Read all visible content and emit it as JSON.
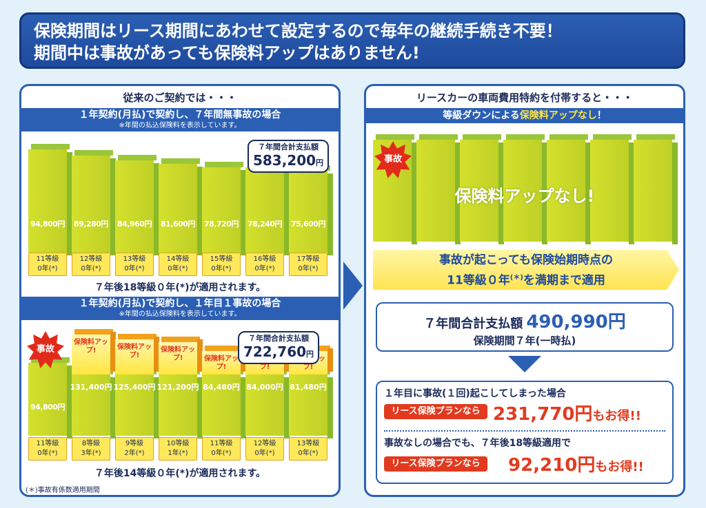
{
  "header": {
    "line1": "保険期間はリース期間にあわせて設定するので毎年の継続手続き不要！",
    "line2": "期間中は事故があっても保険料アップはありません!"
  },
  "left": {
    "title": "従来のご契約では・・・",
    "note": "※年間の払込保険料を表示しています。",
    "footnote": "(＊)事故有係数適用期間"
  },
  "right": {
    "title": "リースカーの車両費用特約を付帯すると・・・",
    "band": "等級ダウンによる保険料アップなし！",
    "band_plain": "等級ダウンによる",
    "band_highlight": "保険料アップなし",
    "band_tail": "！",
    "accident": "事故",
    "no_increase": "保険料アップなし!",
    "arrow_text_1": "事故が起こっても保険始期時点の",
    "arrow_text_2": "11等級０年",
    "arrow_text_2b": "(＊)",
    "arrow_text_2c": "を満期まで適用",
    "total_label": "７年間合計支払額",
    "total_amount": "490,990円",
    "period": "保険期間７年(一時払)",
    "case1": "１年目に事故(１回)起こしてしまった場合",
    "plan_label": "リース保険プランなら",
    "case1_amount": "231,770円",
    "case1_tail": "もお得!!",
    "case2": "事故なしの場合でも、７年後18等級適用で",
    "case2_amount": "92,210円",
    "case2_tail": "もお得!!"
  },
  "chart_data": [
    {
      "type": "bar",
      "title": "１年契約(月払)で契約し、７年間無事故の場合",
      "categories": [
        "11等級 0年(*)",
        "12等級 0年(*)",
        "13等級 0年(*)",
        "14等級 0年(*)",
        "15等級 0年(*)",
        "16等級 0年(*)",
        "17等級 0年(*)"
      ],
      "grades": [
        "11等級",
        "12等級",
        "13等級",
        "14等級",
        "15等級",
        "16等級",
        "17等級"
      ],
      "years": [
        "0年",
        "0年",
        "0年",
        "0年",
        "0年",
        "0年",
        "0年"
      ],
      "values": [
        94800,
        89280,
        84960,
        81600,
        78720,
        78240,
        75600
      ],
      "value_labels": [
        "94,800円",
        "89,280円",
        "84,960円",
        "81,600円",
        "78,720円",
        "78,240円",
        "75,600円"
      ],
      "callout_label": "７年間合計支払額",
      "callout_amount": "583,200",
      "callout_unit": "円",
      "result": "７年後18等級０年(*)が適用されます。",
      "ylim": [
        0,
        100000
      ]
    },
    {
      "type": "bar",
      "title": "１年契約(月払)で契約し、１年目１事故の場合",
      "categories": [
        "11等級 0年(*)",
        "8等級 3年(*)",
        "9等級 2年(*)",
        "10等級 1年(*)",
        "11等級 0年(*)",
        "12等級 0年(*)",
        "13等級 0年(*)"
      ],
      "grades": [
        "11等級",
        "8等級",
        "9等級",
        "10等級",
        "11等級",
        "12等級",
        "13等級"
      ],
      "years": [
        "0年",
        "3年",
        "2年",
        "1年",
        "0年",
        "0年",
        "0年"
      ],
      "values": [
        94800,
        131400,
        125400,
        121200,
        84480,
        84000,
        81480
      ],
      "value_labels": [
        "94,800円",
        "131,400円",
        "125,400円",
        "121,200円",
        "84,480円",
        "84,000円",
        "81,480円"
      ],
      "increase_label": "保険料アップ!",
      "accident": "事故",
      "callout_label": "７年間合計支払額",
      "callout_amount": "722,760",
      "callout_unit": "円",
      "result": "７年後14等級０年(*)が適用されます。",
      "ylim": [
        0,
        140000
      ]
    }
  ],
  "colors": {
    "blue": "#2b5fb4",
    "green": "#c8d82a",
    "yellow": "#ffe640",
    "red": "#e23a1e"
  }
}
